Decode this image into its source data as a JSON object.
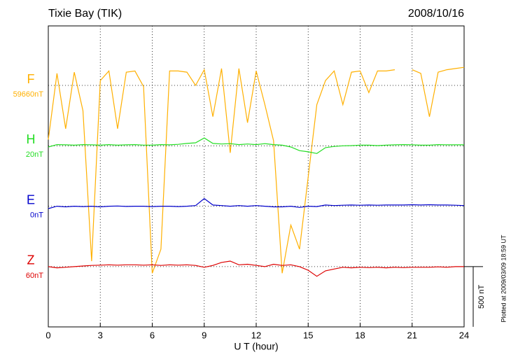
{
  "chart_data": {
    "type": "line",
    "title": "Tixie Bay (TIK)",
    "date": "2008/10/16",
    "x_label": "U T (hour)",
    "plotted_note": "Plotted at 2009/03/09 18:59 UT",
    "scale_bar": {
      "value": 500,
      "label": "500 nT"
    },
    "xlim": [
      0,
      24
    ],
    "xticks": [
      0,
      3,
      6,
      9,
      12,
      15,
      18,
      21,
      24
    ],
    "grid": true,
    "x": [
      0,
      0.5,
      1,
      1.5,
      2,
      2.5,
      3,
      3.5,
      4,
      4.5,
      5,
      5.5,
      6,
      6.5,
      7,
      7.5,
      8,
      8.5,
      9,
      9.5,
      10,
      10.5,
      11,
      11.5,
      12,
      12.5,
      13,
      13.5,
      14,
      14.5,
      15,
      15.5,
      16,
      16.5,
      17,
      17.5,
      18,
      18.5,
      19,
      19.5,
      20,
      20.5,
      21,
      21.5,
      22,
      22.5,
      23,
      23.5,
      24
    ],
    "series": [
      {
        "name": "F",
        "color": "#ffb000",
        "baseline": {
          "value": 59660,
          "label": "59660nT"
        },
        "values": [
          59210,
          59760,
          59300,
          59770,
          59450,
          58200,
          59700,
          59780,
          59300,
          59770,
          59780,
          59650,
          58100,
          58300,
          59780,
          59780,
          59770,
          59660,
          59790,
          59400,
          59800,
          59100,
          59800,
          59350,
          59780,
          59500,
          59200,
          58100,
          58500,
          58300,
          58900,
          59500,
          59700,
          59780,
          59500,
          59770,
          59780,
          59600,
          59780,
          59780,
          59790,
          null,
          59790,
          59760,
          59400,
          59770,
          59790,
          59800,
          59810
        ]
      },
      {
        "name": "H",
        "color": "#22dd22",
        "baseline": {
          "value": 20,
          "label": "20nT"
        },
        "values": [
          10,
          30,
          28,
          25,
          30,
          28,
          25,
          30,
          25,
          28,
          30,
          26,
          25,
          30,
          28,
          32,
          40,
          45,
          85,
          40,
          35,
          38,
          30,
          35,
          30,
          38,
          30,
          25,
          10,
          -20,
          -30,
          -44,
          5,
          15,
          20,
          22,
          25,
          25,
          22,
          25,
          28,
          30,
          28,
          25,
          25,
          30,
          28,
          28,
          28
        ]
      },
      {
        "name": "E",
        "color": "#0000cc",
        "baseline": {
          "value": 0,
          "label": "0nT"
        },
        "values": [
          -20,
          0,
          -5,
          0,
          -3,
          0,
          -5,
          0,
          2,
          -2,
          0,
          0,
          -3,
          0,
          0,
          -3,
          0,
          5,
          64,
          10,
          5,
          0,
          5,
          0,
          5,
          0,
          -5,
          -5,
          0,
          -10,
          0,
          -3,
          10,
          5,
          8,
          10,
          8,
          10,
          8,
          10,
          10,
          10,
          12,
          10,
          12,
          10,
          10,
          8,
          5
        ]
      },
      {
        "name": "Z",
        "color": "#dd0000",
        "baseline": {
          "value": 60,
          "label": "60nT"
        },
        "values": [
          60,
          50,
          55,
          60,
          65,
          70,
          72,
          75,
          72,
          75,
          75,
          72,
          75,
          70,
          75,
          72,
          75,
          70,
          55,
          70,
          95,
          106,
          75,
          80,
          70,
          60,
          80,
          70,
          75,
          60,
          30,
          -20,
          25,
          40,
          55,
          50,
          55,
          52,
          55,
          50,
          55,
          52,
          55,
          55,
          55,
          58,
          55,
          60,
          60
        ]
      }
    ]
  }
}
